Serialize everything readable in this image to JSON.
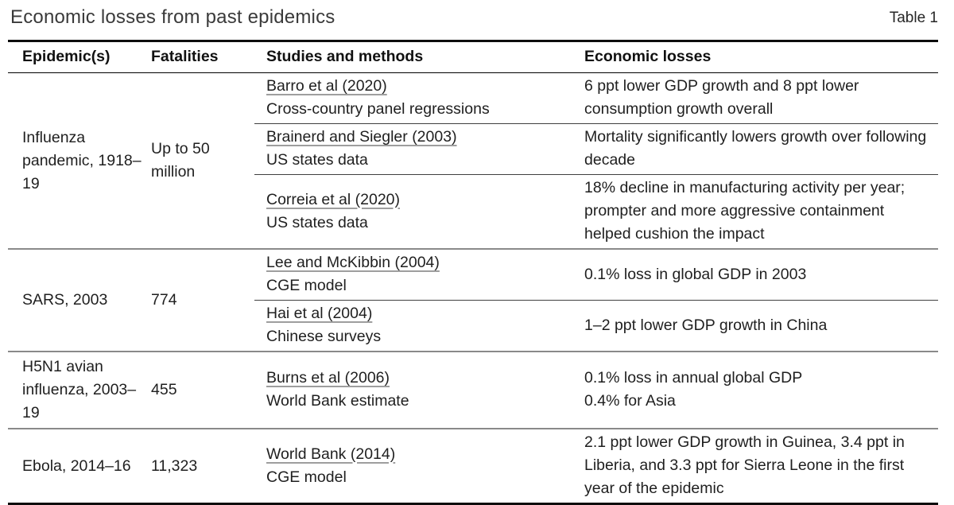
{
  "header": {
    "title": "Economic losses from past epidemics",
    "table_label": "Table 1"
  },
  "colors": {
    "text": "#1f1f1f",
    "title_text": "#3a3a3a",
    "rule_heavy": "#0d0d0d",
    "rule_group": "#8a8a8a",
    "rule_subrow": "#3f3f3f",
    "link_underline": "#9e9e9e",
    "background": "#ffffff"
  },
  "table": {
    "columns": [
      "Epidemic(s)",
      "Fatalities",
      "Studies and methods",
      "Economic losses"
    ],
    "groups": [
      {
        "epidemic": "Influenza pandemic, 1918–19",
        "fatalities": "Up to 50 million",
        "studies": [
          {
            "study": "Barro et al (2020)",
            "method": "Cross-country panel regressions",
            "losses": [
              "6 ppt lower GDP growth and 8 ppt lower consumption growth overall"
            ]
          },
          {
            "study": "Brainerd and Siegler (2003)",
            "method": "US states data",
            "losses": [
              "Mortality significantly lowers growth over following decade"
            ]
          },
          {
            "study": "Correia et al (2020)",
            "method": "US states data",
            "losses": [
              "18% decline in manufacturing activity per year; prompter and more aggressive containment helped cushion the impact"
            ]
          }
        ]
      },
      {
        "epidemic": "SARS, 2003",
        "fatalities": "774",
        "studies": [
          {
            "study": "Lee and McKibbin (2004)",
            "method": "CGE model",
            "losses": [
              "0.1% loss in global GDP in 2003"
            ]
          },
          {
            "study": "Hai et al (2004)",
            "method": "Chinese surveys",
            "losses": [
              "1–2 ppt lower GDP growth in China"
            ]
          }
        ]
      },
      {
        "epidemic": "H5N1 avian influenza, 2003–19",
        "fatalities": "455",
        "studies": [
          {
            "study": "Burns et al (2006)",
            "method": "World Bank estimate",
            "losses": [
              "0.1% loss in annual global GDP",
              "0.4% for Asia"
            ]
          }
        ]
      },
      {
        "epidemic": "Ebola, 2014–16",
        "fatalities": "11,323",
        "studies": [
          {
            "study": "World Bank (2014)",
            "method": "CGE model",
            "losses": [
              "2.1 ppt lower GDP growth in Guinea, 3.4 ppt in Liberia, and 3.3 ppt for Sierra Leone in the first year of the epidemic"
            ]
          }
        ]
      }
    ]
  }
}
